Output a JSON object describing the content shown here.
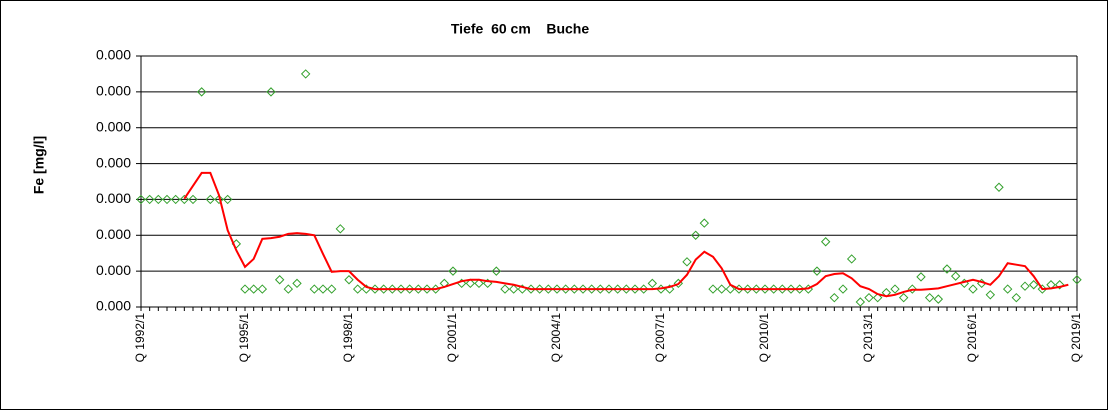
{
  "chart_data": {
    "type": "line",
    "title": "Tiefe  60 cm    Buche",
    "y_label": "Fe [mg/l]",
    "categories": [
      "Q 1992/1",
      null,
      null,
      null,
      null,
      null,
      null,
      null,
      null,
      null,
      null,
      null,
      "Q 1995/1",
      null,
      null,
      null,
      null,
      null,
      null,
      null,
      null,
      null,
      null,
      null,
      "Q 1998/1",
      null,
      null,
      null,
      null,
      null,
      null,
      null,
      null,
      null,
      null,
      null,
      "Q 2001/1",
      null,
      null,
      null,
      null,
      null,
      null,
      null,
      null,
      null,
      null,
      null,
      "Q 2004/1",
      null,
      null,
      null,
      null,
      null,
      null,
      null,
      null,
      null,
      null,
      null,
      "Q 2007/1",
      null,
      null,
      null,
      null,
      null,
      null,
      null,
      null,
      null,
      null,
      null,
      "Q 2010/1",
      null,
      null,
      null,
      null,
      null,
      null,
      null,
      null,
      null,
      null,
      null,
      "Q 2013/1",
      null,
      null,
      null,
      null,
      null,
      null,
      null,
      null,
      null,
      null,
      null,
      "Q 2016/1",
      null,
      null,
      null,
      null,
      null,
      null,
      null,
      null,
      null,
      null,
      null,
      "Q 2019/1"
    ],
    "ylim": [
      0,
      0.00035
    ],
    "yticks": [
      {
        "value": 0,
        "label": "0.000"
      },
      {
        "value": 5e-05,
        "label": "0.000"
      },
      {
        "value": 0.0001,
        "label": "0.000"
      },
      {
        "value": 0.00015,
        "label": "0.000"
      },
      {
        "value": 0.0002,
        "label": "0.000"
      },
      {
        "value": 0.00025,
        "label": "0.000"
      },
      {
        "value": 0.0003,
        "label": "0.000"
      },
      {
        "value": 0.00035,
        "label": "0.000"
      }
    ],
    "grid": true,
    "series": [
      {
        "style": "markers",
        "marker": "diamond",
        "color": "#33a02c",
        "values": [
          0.00015,
          0.00015,
          0.00015,
          0.00015,
          0.00015,
          0.00015,
          0.00015,
          0.0003,
          0.00015,
          0.00015,
          0.00015,
          8.8e-05,
          2.5e-05,
          2.5e-05,
          2.5e-05,
          0.0003,
          3.8e-05,
          2.5e-05,
          3.3e-05,
          0.000325,
          2.5e-05,
          2.5e-05,
          2.5e-05,
          0.000109,
          3.8e-05,
          2.5e-05,
          2.5e-05,
          2.5e-05,
          2.5e-05,
          2.5e-05,
          2.5e-05,
          2.5e-05,
          2.5e-05,
          2.5e-05,
          2.5e-05,
          3.3e-05,
          5e-05,
          3.3e-05,
          3.3e-05,
          3.3e-05,
          3.3e-05,
          5e-05,
          2.5e-05,
          2.5e-05,
          2.5e-05,
          2.5e-05,
          2.5e-05,
          2.5e-05,
          2.5e-05,
          2.5e-05,
          2.5e-05,
          2.5e-05,
          2.5e-05,
          2.5e-05,
          2.5e-05,
          2.5e-05,
          2.5e-05,
          2.5e-05,
          2.5e-05,
          3.3e-05,
          2.5e-05,
          2.5e-05,
          3.3e-05,
          6.3e-05,
          0.0001,
          0.000117,
          2.5e-05,
          2.5e-05,
          2.5e-05,
          2.5e-05,
          2.5e-05,
          2.5e-05,
          2.5e-05,
          2.5e-05,
          2.5e-05,
          2.5e-05,
          2.5e-05,
          2.5e-05,
          5e-05,
          9.1e-05,
          1.3e-05,
          2.5e-05,
          6.7e-05,
          7e-06,
          1.3e-05,
          1.3e-05,
          2e-05,
          2.5e-05,
          1.3e-05,
          2.5e-05,
          4.2e-05,
          1.3e-05,
          1.1e-05,
          5.3e-05,
          4.3e-05,
          3.3e-05,
          2.5e-05,
          3.3e-05,
          1.7e-05,
          0.000167,
          2.5e-05,
          1.3e-05,
          2.9e-05,
          3.1e-05,
          2.5e-05,
          3.1e-05,
          3.1e-05,
          null,
          3.8e-05
        ]
      },
      {
        "style": "line",
        "color": "#ff0000",
        "values": [
          null,
          null,
          null,
          null,
          null,
          0.000151,
          0.000169,
          0.000187,
          0.000187,
          0.000156,
          0.000107,
          7.9e-05,
          5.6e-05,
          6.7e-05,
          9.5e-05,
          9.6e-05,
          9.8e-05,
          0.000102,
          0.000103,
          0.000102,
          0.0001,
          7.4e-05,
          4.9e-05,
          5e-05,
          5e-05,
          3.8e-05,
          2.8e-05,
          2.5e-05,
          2.5e-05,
          2.5e-05,
          2.5e-05,
          2.5e-05,
          2.5e-05,
          2.5e-05,
          2.5e-05,
          2.8e-05,
          3.2e-05,
          3.6e-05,
          3.8e-05,
          3.8e-05,
          3.6e-05,
          3.5e-05,
          3.3e-05,
          3.1e-05,
          2.8e-05,
          2.5e-05,
          2.5e-05,
          2.5e-05,
          2.5e-05,
          2.5e-05,
          2.5e-05,
          2.5e-05,
          2.5e-05,
          2.5e-05,
          2.5e-05,
          2.5e-05,
          2.5e-05,
          2.5e-05,
          2.5e-05,
          2.5e-05,
          2.6e-05,
          2.8e-05,
          3.2e-05,
          4.5e-05,
          6.6e-05,
          7.7e-05,
          7e-05,
          5.4e-05,
          3.1e-05,
          2.5e-05,
          2.5e-05,
          2.5e-05,
          2.5e-05,
          2.5e-05,
          2.5e-05,
          2.5e-05,
          2.5e-05,
          2.6e-05,
          3.2e-05,
          4.3e-05,
          4.6e-05,
          4.7e-05,
          4e-05,
          2.9e-05,
          2.5e-05,
          1.8e-05,
          1.5e-05,
          1.7e-05,
          2.1e-05,
          2.4e-05,
          2.4e-05,
          2.5e-05,
          2.6e-05,
          2.9e-05,
          3.2e-05,
          3.5e-05,
          3.8e-05,
          3.5e-05,
          3.1e-05,
          4.3e-05,
          6.1e-05,
          5.9e-05,
          5.7e-05,
          4.3e-05,
          2.5e-05,
          2.6e-05,
          2.8e-05,
          3.1e-05,
          null
        ]
      }
    ]
  }
}
